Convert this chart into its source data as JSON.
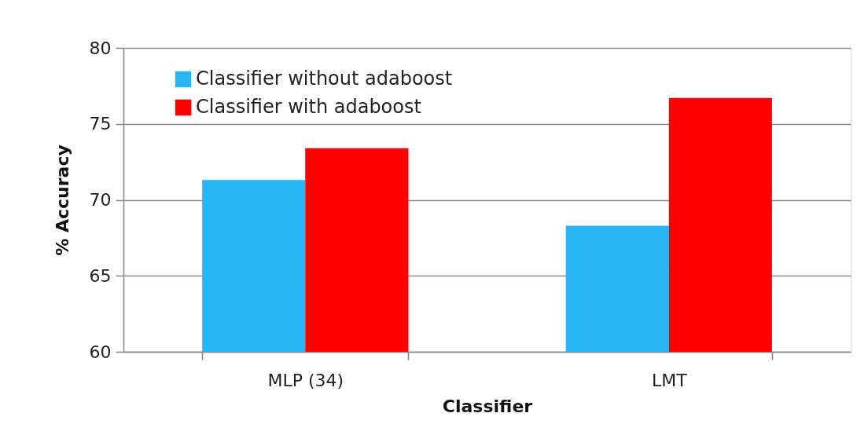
{
  "chart_data": {
    "type": "bar",
    "xlabel": "Classifier",
    "ylabel": "% Accuracy",
    "categories": [
      "MLP (34)",
      "LMT"
    ],
    "series": [
      {
        "name": "Classifier without adaboost",
        "color": "#29b6f6",
        "values": [
          71.3,
          68.3
        ]
      },
      {
        "name": "Classifier with adaboost",
        "color": "#ff0000",
        "values": [
          73.4,
          76.7
        ]
      }
    ],
    "ylim": [
      60,
      80
    ],
    "yticks": [
      60,
      65,
      70,
      75,
      80
    ],
    "grid": "y",
    "legend": "top left"
  }
}
